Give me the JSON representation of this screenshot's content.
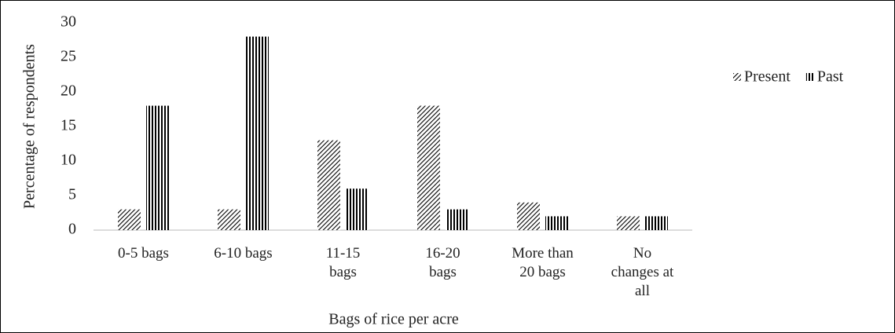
{
  "chart_data": {
    "type": "bar",
    "x_label": "Bags of  rice per acre",
    "y_label": "Percentage  of respondents",
    "categories": [
      "0-5 bags",
      "6-10 bags",
      "11-15 bags",
      "16-20 bags",
      "More than 20 bags",
      "No changes at all"
    ],
    "series": [
      {
        "name": "Present",
        "color": "#000000",
        "pattern": "diagonal",
        "values": [
          3,
          3,
          13,
          18,
          4,
          2
        ]
      },
      {
        "name": "Past",
        "color": "#000000",
        "pattern": "vertical",
        "values": [
          18,
          28,
          6,
          3,
          2,
          2
        ]
      }
    ],
    "ylim": [
      0,
      30
    ],
    "yticks": [
      0,
      5,
      10,
      15,
      20,
      25,
      30
    ],
    "grid": false,
    "legend": "right"
  }
}
